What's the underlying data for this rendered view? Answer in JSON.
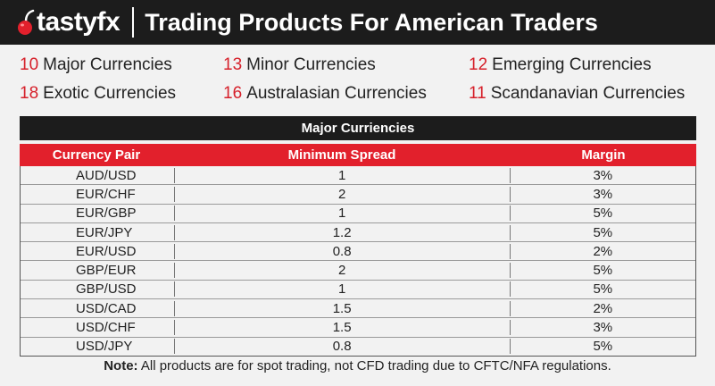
{
  "header": {
    "brand": "tastyfx",
    "title": "Trading Products For American Traders"
  },
  "counts": [
    {
      "num": "10",
      "label": "Major Currencies"
    },
    {
      "num": "13",
      "label": "Minor Currencies"
    },
    {
      "num": "12",
      "label": "Emerging Currencies"
    },
    {
      "num": "18",
      "label": "Exotic Currencies"
    },
    {
      "num": "16",
      "label": "Australasian Currencies"
    },
    {
      "num": "11",
      "label": "Scandanavian Currencies"
    }
  ],
  "table": {
    "title": "Major Curriencies",
    "columns": [
      "Currency Pair",
      "Minimum Spread",
      "Margin"
    ],
    "rows": [
      [
        "AUD/USD",
        "1",
        "3%"
      ],
      [
        "EUR/CHF",
        "2",
        "3%"
      ],
      [
        "EUR/GBP",
        "1",
        "5%"
      ],
      [
        "EUR/JPY",
        "1.2",
        "5%"
      ],
      [
        "EUR/USD",
        "0.8",
        "2%"
      ],
      [
        "GBP/EUR",
        "2",
        "5%"
      ],
      [
        "GBP/USD",
        "1",
        "5%"
      ],
      [
        "USD/CAD",
        "1.5",
        "2%"
      ],
      [
        "USD/CHF",
        "1.5",
        "3%"
      ],
      [
        "USD/JPY",
        "0.8",
        "5%"
      ]
    ]
  },
  "note": {
    "label": "Note:",
    "text": " All products are for spot trading, not CFD trading due to CFTC/NFA regulations."
  },
  "colors": {
    "accent_red": "#e2202c",
    "header_bg": "#1c1c1c"
  },
  "icons": {
    "logo": "cherry-icon"
  }
}
